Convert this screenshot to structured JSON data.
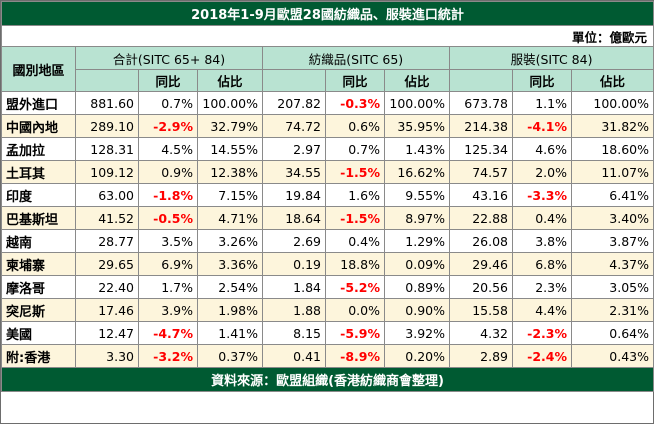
{
  "title": "2018年1-9月歐盟28國紡織品、服裝進口統計",
  "unit": "單位：億歐元",
  "headers": {
    "country": "國別地區",
    "groups": [
      "合計(SITC 65+ 84)",
      "紡織品(SITC 65)",
      "服裝(SITC 84)"
    ],
    "sub": [
      "同比",
      "佔比"
    ]
  },
  "rows": [
    {
      "name": "盟外進口",
      "cells": [
        "881.60",
        "0.7%",
        "100.00%",
        "207.82",
        "-0.3%",
        "100.00%",
        "673.78",
        "1.1%",
        "100.00%"
      ]
    },
    {
      "name": "中國內地",
      "cells": [
        "289.10",
        "-2.9%",
        "32.79%",
        "74.72",
        "0.6%",
        "35.95%",
        "214.38",
        "-4.1%",
        "31.82%"
      ]
    },
    {
      "name": "孟加拉",
      "cells": [
        "128.31",
        "4.5%",
        "14.55%",
        "2.97",
        "0.7%",
        "1.43%",
        "125.34",
        "4.6%",
        "18.60%"
      ]
    },
    {
      "name": "土耳其",
      "cells": [
        "109.12",
        "0.9%",
        "12.38%",
        "34.55",
        "-1.5%",
        "16.62%",
        "74.57",
        "2.0%",
        "11.07%"
      ]
    },
    {
      "name": "印度",
      "cells": [
        "63.00",
        "-1.8%",
        "7.15%",
        "19.84",
        "1.6%",
        "9.55%",
        "43.16",
        "-3.3%",
        "6.41%"
      ]
    },
    {
      "name": "巴基斯坦",
      "cells": [
        "41.52",
        "-0.5%",
        "4.71%",
        "18.64",
        "-1.5%",
        "8.97%",
        "22.88",
        "0.4%",
        "3.40%"
      ]
    },
    {
      "name": "越南",
      "cells": [
        "28.77",
        "3.5%",
        "3.26%",
        "2.69",
        "0.4%",
        "1.29%",
        "26.08",
        "3.8%",
        "3.87%"
      ]
    },
    {
      "name": "柬埔寨",
      "cells": [
        "29.65",
        "6.9%",
        "3.36%",
        "0.19",
        "18.8%",
        "0.09%",
        "29.46",
        "6.8%",
        "4.37%"
      ]
    },
    {
      "name": "摩洛哥",
      "cells": [
        "22.40",
        "1.7%",
        "2.54%",
        "1.84",
        "-5.2%",
        "0.89%",
        "20.56",
        "2.3%",
        "3.05%"
      ]
    },
    {
      "name": "突尼斯",
      "cells": [
        "17.46",
        "3.9%",
        "1.98%",
        "1.88",
        "0.0%",
        "0.90%",
        "15.58",
        "4.4%",
        "2.31%"
      ]
    },
    {
      "name": "美國",
      "cells": [
        "12.47",
        "-4.7%",
        "1.41%",
        "8.15",
        "-5.9%",
        "3.92%",
        "4.32",
        "-2.3%",
        "0.64%"
      ]
    },
    {
      "name": "附:香港",
      "cells": [
        "3.30",
        "-3.2%",
        "0.37%",
        "0.41",
        "-8.9%",
        "0.20%",
        "2.89",
        "-2.4%",
        "0.43%"
      ]
    }
  ],
  "source": "資料來源：歐盟組織(香港紡織商會整理)",
  "colors": {
    "header_green": "#005a32",
    "header_mint": "#b9e3d2",
    "alt_row": "#fdf5dc",
    "negative": "#ff0000"
  }
}
